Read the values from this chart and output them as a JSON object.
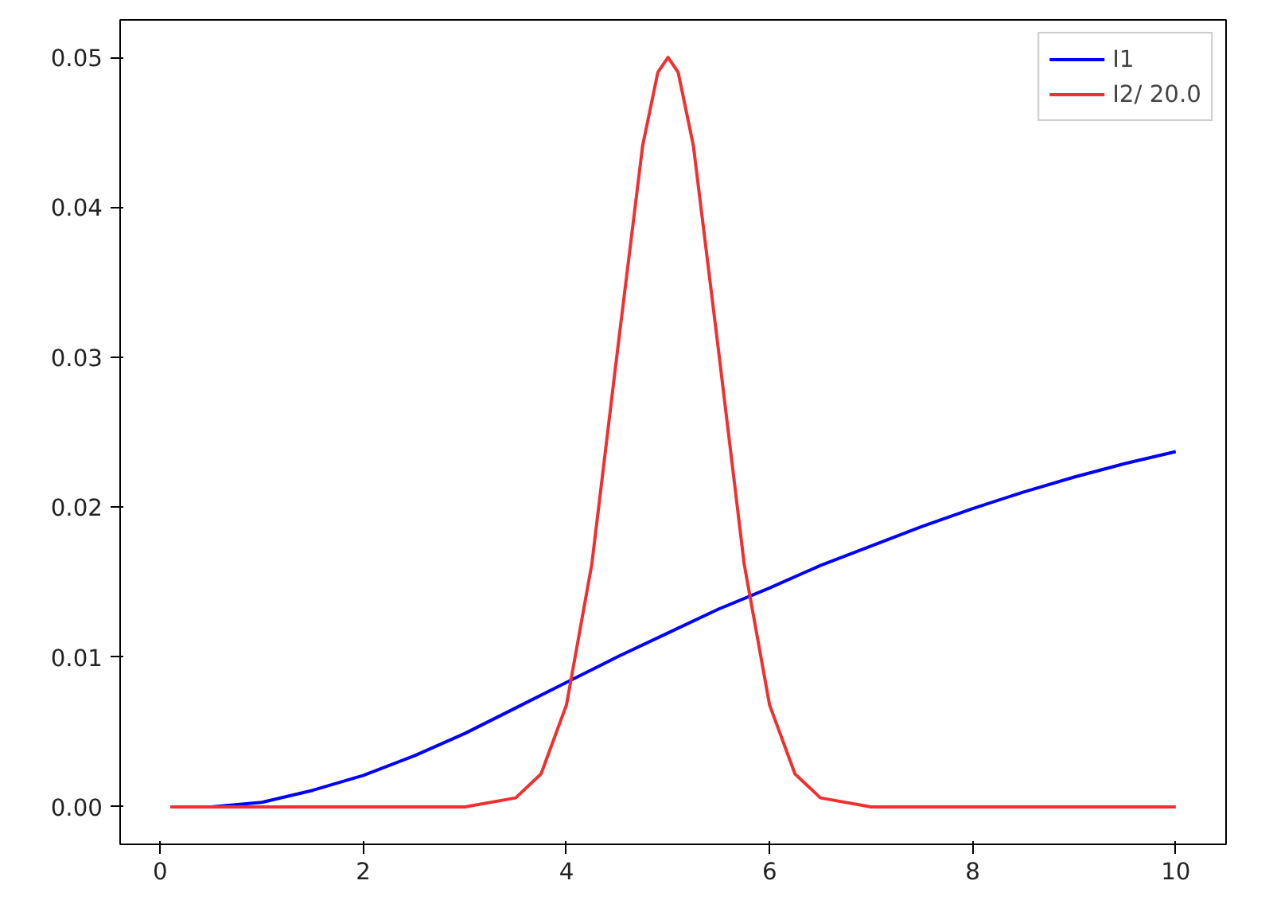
{
  "chart_data": {
    "type": "line",
    "xlim": [
      -0.395,
      10.495
    ],
    "ylim": [
      -0.0025,
      0.0525
    ],
    "xticks": [
      0,
      2,
      4,
      6,
      8,
      10
    ],
    "yticks": [
      {
        "value": 0,
        "label": "0.00"
      },
      {
        "value": 0.01,
        "label": "0.01"
      },
      {
        "value": 0.02,
        "label": "0.02"
      },
      {
        "value": 0.03,
        "label": "0.03"
      },
      {
        "value": 0.04,
        "label": "0.04"
      },
      {
        "value": 0.05,
        "label": "0.05"
      }
    ],
    "grid": false,
    "legend": "top right",
    "line_style": "solid",
    "marker": "none",
    "series": [
      {
        "name": "I1",
        "color": "#0000ff",
        "x": [
          0.1,
          0.5,
          1,
          1.5,
          2,
          2.5,
          3,
          3.5,
          4,
          4.5,
          5,
          5.5,
          6,
          6.5,
          7,
          7.5,
          8,
          8.5,
          9,
          9.5,
          10
        ],
        "values": [
          0,
          0,
          0.0003,
          0.0011,
          0.0021,
          0.0034,
          0.0049,
          0.0066,
          0.0083,
          0.01,
          0.0116,
          0.0132,
          0.0146,
          0.0161,
          0.0174,
          0.0187,
          0.0199,
          0.021,
          0.022,
          0.0229,
          0.0237
        ]
      },
      {
        "name": "I2/ 20.0",
        "color": "#f03030",
        "x": [
          0.1,
          3,
          3.5,
          3.75,
          4,
          4.25,
          4.5,
          4.75,
          4.9,
          5,
          5.1,
          5.25,
          5.5,
          5.75,
          6,
          6.25,
          6.5,
          7,
          10
        ],
        "values": [
          0,
          0,
          0.0006,
          0.0022,
          0.0068,
          0.0162,
          0.0303,
          0.0441,
          0.049,
          0.05,
          0.049,
          0.0441,
          0.0303,
          0.0162,
          0.0068,
          0.0022,
          0.0006,
          0,
          0
        ]
      }
    ]
  }
}
